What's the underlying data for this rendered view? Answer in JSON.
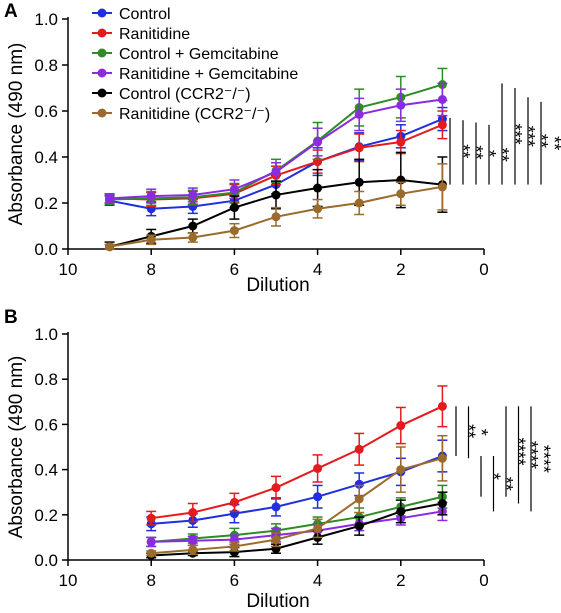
{
  "colors": {
    "blue": "#1f2fe0",
    "red": "#e41a1c",
    "green": "#2e8b25",
    "purple": "#8a2be2",
    "black": "#000000",
    "brown": "#9a6b2c"
  },
  "chart_data": [
    {
      "panel": "A",
      "type": "line",
      "xlabel": "Dilution",
      "ylabel": "Absorbance (490 nm)",
      "xlim": [
        10,
        0
      ],
      "ylim": [
        0,
        1.0
      ],
      "xticks": [
        "10",
        "8",
        "6",
        "4",
        "2",
        "0"
      ],
      "yticks": [
        "0.0",
        "0.2",
        "0.4",
        "0.6",
        "0.8",
        "1.0"
      ],
      "x": [
        9,
        8,
        7,
        6,
        5,
        4,
        3,
        2,
        1
      ],
      "legend_position": "top-left",
      "series": [
        {
          "name": "Control",
          "color": "blue",
          "values": [
            0.21,
            0.175,
            0.185,
            0.21,
            0.28,
            0.38,
            0.445,
            0.49,
            0.565
          ],
          "err": [
            0.02,
            0.03,
            0.03,
            0.03,
            0.04,
            0.06,
            0.06,
            0.05,
            0.05
          ]
        },
        {
          "name": "Ranitidine",
          "color": "red",
          "values": [
            0.22,
            0.215,
            0.22,
            0.24,
            0.32,
            0.38,
            0.44,
            0.465,
            0.54
          ],
          "err": [
            0.02,
            0.03,
            0.03,
            0.04,
            0.04,
            0.05,
            0.06,
            0.05,
            0.06
          ]
        },
        {
          "name": "Control + Gemcitabine",
          "color": "green",
          "values": [
            0.215,
            0.22,
            0.225,
            0.245,
            0.34,
            0.47,
            0.615,
            0.66,
            0.715
          ],
          "err": [
            0.02,
            0.03,
            0.03,
            0.04,
            0.05,
            0.08,
            0.08,
            0.09,
            0.07
          ]
        },
        {
          "name": "Ranitidine + Gemcitabine",
          "color": "purple",
          "values": [
            0.22,
            0.23,
            0.235,
            0.26,
            0.335,
            0.465,
            0.585,
            0.625,
            0.65
          ],
          "err": [
            0.02,
            0.03,
            0.03,
            0.04,
            0.04,
            0.06,
            0.07,
            0.07,
            0.07
          ]
        },
        {
          "name": "Control (CCR2⁻/⁻)",
          "color": "black",
          "values": [
            0.01,
            0.055,
            0.1,
            0.18,
            0.235,
            0.265,
            0.29,
            0.3,
            0.28
          ],
          "err": [
            0.02,
            0.03,
            0.03,
            0.05,
            0.06,
            0.08,
            0.1,
            0.12,
            0.12
          ]
        },
        {
          "name": "Ranitidine (CCR2⁻/⁻)",
          "color": "brown",
          "values": [
            0.01,
            0.04,
            0.05,
            0.08,
            0.14,
            0.175,
            0.2,
            0.24,
            0.27
          ],
          "err": [
            0.01,
            0.02,
            0.02,
            0.03,
            0.04,
            0.04,
            0.05,
            0.05,
            0.1
          ]
        }
      ],
      "significance": [
        "**",
        "**",
        "*",
        "**",
        "***",
        "***",
        "**",
        "**"
      ]
    },
    {
      "panel": "B",
      "type": "line",
      "xlabel": "Dilution",
      "ylabel": "Absorbance (490 nm)",
      "xlim": [
        10,
        0
      ],
      "ylim": [
        0,
        1.0
      ],
      "xticks": [
        "10",
        "8",
        "6",
        "4",
        "2",
        "0"
      ],
      "yticks": [
        "0.0",
        "0.2",
        "0.4",
        "0.6",
        "0.8",
        "1.0"
      ],
      "x": [
        8,
        7,
        6,
        5,
        4,
        3,
        2,
        1
      ],
      "series": [
        {
          "color": "blue",
          "values": [
            0.16,
            0.175,
            0.205,
            0.235,
            0.28,
            0.335,
            0.39,
            0.46
          ],
          "err": [
            0.03,
            0.03,
            0.04,
            0.04,
            0.05,
            0.05,
            0.06,
            0.07
          ]
        },
        {
          "color": "red",
          "values": [
            0.185,
            0.21,
            0.255,
            0.32,
            0.405,
            0.49,
            0.595,
            0.68
          ],
          "err": [
            0.03,
            0.04,
            0.04,
            0.05,
            0.06,
            0.07,
            0.08,
            0.09
          ]
        },
        {
          "color": "green",
          "values": [
            0.08,
            0.095,
            0.11,
            0.13,
            0.16,
            0.19,
            0.235,
            0.28
          ],
          "err": [
            0.02,
            0.02,
            0.03,
            0.03,
            0.03,
            0.04,
            0.04,
            0.05
          ]
        },
        {
          "color": "purple",
          "values": [
            0.08,
            0.085,
            0.09,
            0.11,
            0.13,
            0.16,
            0.185,
            0.215
          ],
          "err": [
            0.02,
            0.02,
            0.02,
            0.03,
            0.03,
            0.03,
            0.03,
            0.04
          ]
        },
        {
          "color": "black",
          "values": [
            0.02,
            0.03,
            0.035,
            0.05,
            0.1,
            0.15,
            0.215,
            0.25
          ],
          "err": [
            0.01,
            0.01,
            0.02,
            0.02,
            0.03,
            0.04,
            0.05,
            0.05
          ]
        },
        {
          "color": "brown",
          "values": [
            0.03,
            0.045,
            0.06,
            0.09,
            0.14,
            0.27,
            0.4,
            0.45
          ],
          "err": [
            0.01,
            0.02,
            0.02,
            0.03,
            0.04,
            0.06,
            0.1,
            0.1
          ]
        }
      ],
      "significance": [
        "**",
        "*",
        "*",
        "**",
        "****",
        "****",
        "****"
      ]
    }
  ]
}
